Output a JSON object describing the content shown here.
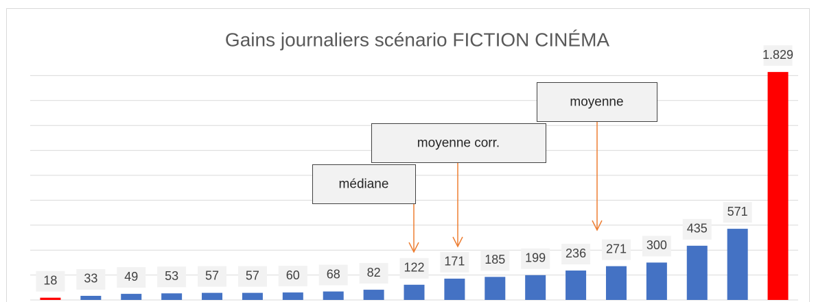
{
  "chart_data": {
    "type": "bar",
    "title": "Gains journaliers scénario FICTION CINÉMA",
    "values": [
      18,
      33,
      49,
      53,
      57,
      57,
      60,
      68,
      82,
      122,
      171,
      185,
      199,
      236,
      271,
      300,
      435,
      571,
      1829
    ],
    "value_labels": [
      "18",
      "33",
      "49",
      "53",
      "57",
      "57",
      "60",
      "68",
      "82",
      "122",
      "171",
      "185",
      "199",
      "236",
      "271",
      "300",
      "435",
      "571",
      "1.829"
    ],
    "colors": [
      "#ff0000",
      "#4472c4",
      "#4472c4",
      "#4472c4",
      "#4472c4",
      "#4472c4",
      "#4472c4",
      "#4472c4",
      "#4472c4",
      "#4472c4",
      "#4472c4",
      "#4472c4",
      "#4472c4",
      "#4472c4",
      "#4472c4",
      "#4472c4",
      "#4472c4",
      "#4472c4",
      "#ff0000"
    ],
    "ylim": [
      0,
      2000
    ],
    "yticks": [
      0,
      200,
      400,
      600,
      800,
      1000,
      1200,
      1400,
      1600,
      1800
    ],
    "grid": true,
    "annotations": [
      "médiane",
      "moyenne corr.",
      "moyenne"
    ]
  }
}
